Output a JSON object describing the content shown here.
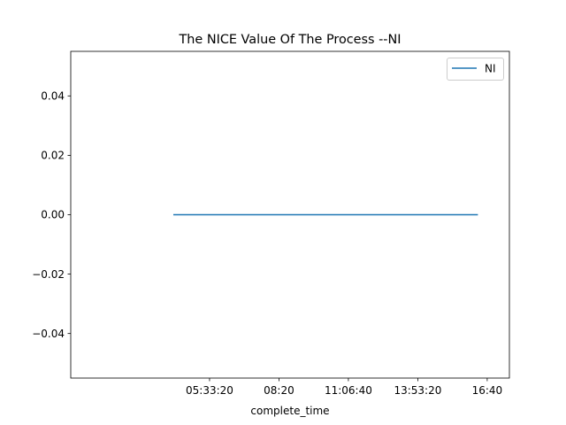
{
  "chart_data": {
    "type": "line",
    "title": "The NICE Value Of The Process --NI",
    "xlabel": "complete_time",
    "ylabel": "",
    "x_axis_kind": "time",
    "xlim": [
      "00:00",
      "17:33:20"
    ],
    "x_ticks": [
      {
        "value": "05:33:20",
        "label": "05:33:20"
      },
      {
        "value": "08:20:00",
        "label": "08:20"
      },
      {
        "value": "11:06:40",
        "label": "11:06:40"
      },
      {
        "value": "13:53:20",
        "label": "13:53:20"
      },
      {
        "value": "16:40:00",
        "label": "16:40"
      }
    ],
    "ylim": [
      -0.055,
      0.055
    ],
    "y_ticks": [
      {
        "value": 0.04,
        "label": "0.04"
      },
      {
        "value": 0.02,
        "label": "0.02"
      },
      {
        "value": 0.0,
        "label": "0.00"
      },
      {
        "value": -0.02,
        "label": "−0.02"
      },
      {
        "value": -0.04,
        "label": "−0.04"
      }
    ],
    "grid": false,
    "legend_position": "top-right",
    "series": [
      {
        "name": "NI",
        "color": "#1f77b4",
        "x": [
          "04:08:00",
          "16:16:00"
        ],
        "values": [
          0,
          0
        ]
      }
    ]
  }
}
